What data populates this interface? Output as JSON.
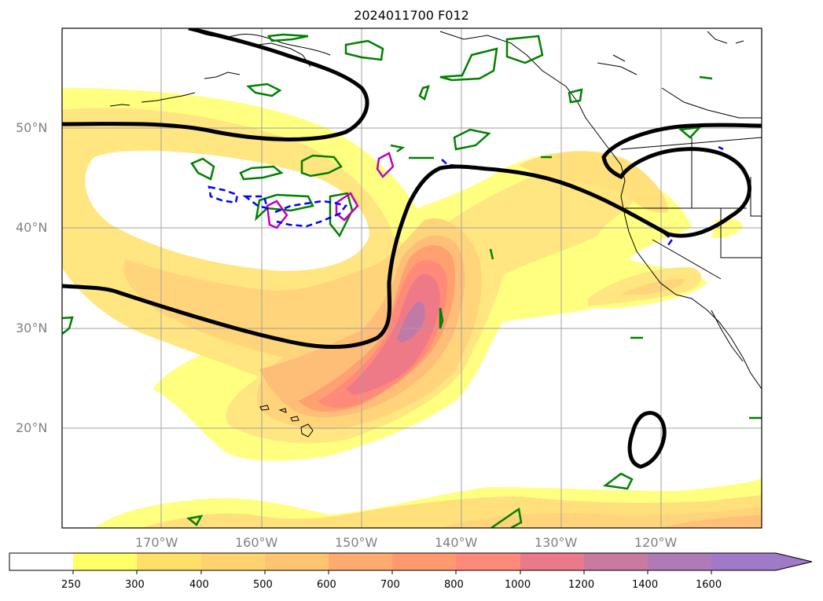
{
  "title": "2024011700 F012",
  "lat_labels": [
    "50°N",
    "40°N",
    "30°N",
    "20°N"
  ],
  "lon_labels": [
    "170°W",
    "160°W",
    "150°W",
    "140°W",
    "130°W",
    "120°W"
  ],
  "colorbar": {
    "ticks": [
      "250",
      "300",
      "400",
      "500",
      "600",
      "700",
      "800",
      "1000",
      "1200",
      "1400",
      "1600"
    ],
    "colors": [
      "#ffff66",
      "#ffe066",
      "#ffd26e",
      "#ffc46e",
      "#ffaa6e",
      "#ff9a6e",
      "#ff8a7a",
      "#e87a8c",
      "#c87aa0",
      "#b07ab8",
      "#a07ac8"
    ],
    "extend": "max"
  },
  "map": {
    "region": "North Pacific",
    "lat_range": [
      "10°N",
      "60°N"
    ],
    "lon_range": [
      "180°W",
      "110°W"
    ],
    "grid": true,
    "contours": {
      "filled_field_color": "yellow-to-purple",
      "black_line": "thick contour",
      "green_line": "closed contours",
      "magenta_line": "closed contours",
      "blue_line": "dashed contours"
    }
  }
}
